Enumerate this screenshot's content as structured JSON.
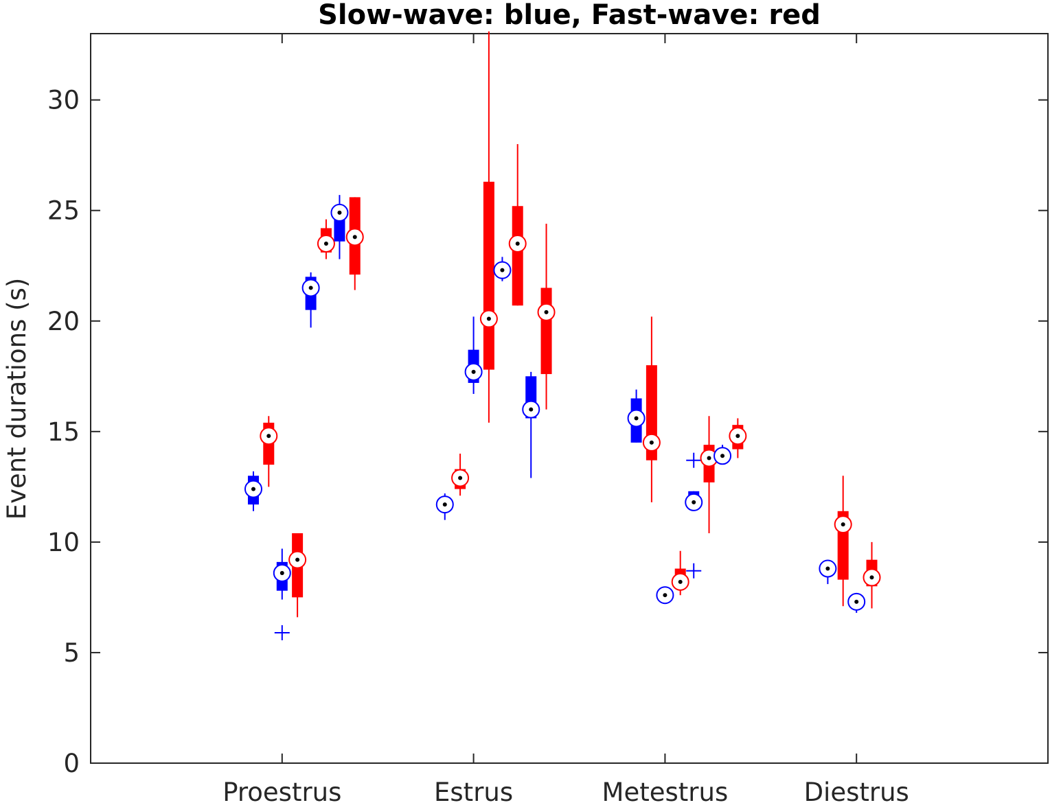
{
  "chart_data": {
    "type": "boxplot",
    "title": "Slow-wave: blue, Fast-wave: red",
    "xlabel": "",
    "ylabel": "Event durations (s)",
    "ylim": [
      0,
      33
    ],
    "yticks": [
      0,
      5,
      10,
      15,
      20,
      25,
      30
    ],
    "categories": [
      "Proestrus",
      "Estrus",
      "Metestrus",
      "Diestrus"
    ],
    "grid": false,
    "colors": {
      "slow": "#0000ff",
      "fast": "#ff0000"
    },
    "series": [
      {
        "group": "Proestrus",
        "type": "slow",
        "x": 0.85,
        "median": 12.4,
        "q1": 11.7,
        "q3": 13.0,
        "whisker_low": 11.4,
        "whisker_high": 13.2,
        "outliers": []
      },
      {
        "group": "Proestrus",
        "type": "fast",
        "x": 0.93,
        "median": 14.8,
        "q1": 13.5,
        "q3": 15.4,
        "whisker_low": 12.5,
        "whisker_high": 15.7,
        "outliers": []
      },
      {
        "group": "Proestrus",
        "type": "slow",
        "x": 1.0,
        "median": 8.6,
        "q1": 7.8,
        "q3": 9.1,
        "whisker_low": 7.4,
        "whisker_high": 9.7,
        "outliers": [
          5.9
        ]
      },
      {
        "group": "Proestrus",
        "type": "fast",
        "x": 1.08,
        "median": 9.2,
        "q1": 7.5,
        "q3": 10.4,
        "whisker_low": 6.6,
        "whisker_high": 10.4,
        "outliers": []
      },
      {
        "group": "Proestrus",
        "type": "slow",
        "x": 1.15,
        "median": 21.5,
        "q1": 20.5,
        "q3": 22.0,
        "whisker_low": 19.7,
        "whisker_high": 22.2,
        "outliers": []
      },
      {
        "group": "Proestrus",
        "type": "fast",
        "x": 1.23,
        "median": 23.5,
        "q1": 23.1,
        "q3": 24.2,
        "whisker_low": 22.8,
        "whisker_high": 24.6,
        "outliers": []
      },
      {
        "group": "Proestrus",
        "type": "slow",
        "x": 1.3,
        "median": 24.9,
        "q1": 23.6,
        "q3": 25.1,
        "whisker_low": 22.8,
        "whisker_high": 25.7,
        "outliers": []
      },
      {
        "group": "Proestrus",
        "type": "fast",
        "x": 1.38,
        "median": 23.8,
        "q1": 22.1,
        "q3": 25.6,
        "whisker_low": 21.4,
        "whisker_high": 25.6,
        "outliers": []
      },
      {
        "group": "Estrus",
        "type": "slow",
        "x": 1.85,
        "median": 11.7,
        "q1": 11.4,
        "q3": 11.9,
        "whisker_low": 11.0,
        "whisker_high": 12.2,
        "outliers": []
      },
      {
        "group": "Estrus",
        "type": "fast",
        "x": 1.93,
        "median": 12.9,
        "q1": 12.4,
        "q3": 13.3,
        "whisker_low": 12.1,
        "whisker_high": 14.0,
        "outliers": []
      },
      {
        "group": "Estrus",
        "type": "slow",
        "x": 2.0,
        "median": 17.7,
        "q1": 17.2,
        "q3": 18.7,
        "whisker_low": 16.7,
        "whisker_high": 20.2,
        "outliers": []
      },
      {
        "group": "Estrus",
        "type": "fast",
        "x": 2.08,
        "median": 20.1,
        "q1": 17.8,
        "q3": 26.3,
        "whisker_low": 15.4,
        "whisker_high": 33.1,
        "outliers": []
      },
      {
        "group": "Estrus",
        "type": "slow",
        "x": 2.15,
        "median": 22.3,
        "q1": 22.0,
        "q3": 22.6,
        "whisker_low": 21.8,
        "whisker_high": 22.9,
        "outliers": []
      },
      {
        "group": "Estrus",
        "type": "fast",
        "x": 2.23,
        "median": 23.5,
        "q1": 20.7,
        "q3": 25.2,
        "whisker_low": 20.7,
        "whisker_high": 28.0,
        "outliers": []
      },
      {
        "group": "Estrus",
        "type": "slow",
        "x": 2.3,
        "median": 16.0,
        "q1": 15.6,
        "q3": 17.5,
        "whisker_low": 12.9,
        "whisker_high": 17.7,
        "outliers": []
      },
      {
        "group": "Estrus",
        "type": "fast",
        "x": 2.38,
        "median": 20.4,
        "q1": 17.6,
        "q3": 21.5,
        "whisker_low": 16.0,
        "whisker_high": 24.4,
        "outliers": []
      },
      {
        "group": "Metestrus",
        "type": "slow",
        "x": 2.85,
        "median": 15.6,
        "q1": 14.5,
        "q3": 16.5,
        "whisker_low": 14.5,
        "whisker_high": 16.9,
        "outliers": []
      },
      {
        "group": "Metestrus",
        "type": "fast",
        "x": 2.93,
        "median": 14.5,
        "q1": 13.7,
        "q3": 18.0,
        "whisker_low": 11.8,
        "whisker_high": 20.2,
        "outliers": []
      },
      {
        "group": "Metestrus",
        "type": "slow",
        "x": 3.0,
        "median": 7.6,
        "q1": 7.4,
        "q3": 7.8,
        "whisker_low": 7.3,
        "whisker_high": 7.9,
        "outliers": []
      },
      {
        "group": "Metestrus",
        "type": "fast",
        "x": 3.08,
        "median": 8.2,
        "q1": 7.9,
        "q3": 8.8,
        "whisker_low": 7.6,
        "whisker_high": 9.6,
        "outliers": []
      },
      {
        "group": "Metestrus",
        "type": "slow",
        "x": 3.15,
        "median": 11.8,
        "q1": 11.7,
        "q3": 12.3,
        "whisker_low": 11.7,
        "whisker_high": 12.3,
        "outliers": [
          13.7,
          8.7
        ]
      },
      {
        "group": "Metestrus",
        "type": "fast",
        "x": 3.23,
        "median": 13.8,
        "q1": 12.7,
        "q3": 14.4,
        "whisker_low": 10.4,
        "whisker_high": 15.7,
        "outliers": []
      },
      {
        "group": "Metestrus",
        "type": "slow",
        "x": 3.3,
        "median": 13.9,
        "q1": 13.7,
        "q3": 14.2,
        "whisker_low": 13.6,
        "whisker_high": 14.4,
        "outliers": []
      },
      {
        "group": "Metestrus",
        "type": "fast",
        "x": 3.38,
        "median": 14.8,
        "q1": 14.2,
        "q3": 15.3,
        "whisker_low": 13.8,
        "whisker_high": 15.6,
        "outliers": []
      },
      {
        "group": "Diestrus",
        "type": "slow",
        "x": 3.85,
        "median": 8.8,
        "q1": 8.6,
        "q3": 9.0,
        "whisker_low": 8.1,
        "whisker_high": 9.1,
        "outliers": []
      },
      {
        "group": "Diestrus",
        "type": "fast",
        "x": 3.93,
        "median": 10.8,
        "q1": 8.3,
        "q3": 11.4,
        "whisker_low": 7.1,
        "whisker_high": 13.0,
        "outliers": []
      },
      {
        "group": "Diestrus",
        "type": "slow",
        "x": 4.0,
        "median": 7.3,
        "q1": 7.0,
        "q3": 7.5,
        "whisker_low": 6.8,
        "whisker_high": 7.7,
        "outliers": []
      },
      {
        "group": "Diestrus",
        "type": "fast",
        "x": 4.08,
        "median": 8.4,
        "q1": 8.0,
        "q3": 9.2,
        "whisker_low": 7.0,
        "whisker_high": 10.0,
        "outliers": []
      }
    ]
  }
}
